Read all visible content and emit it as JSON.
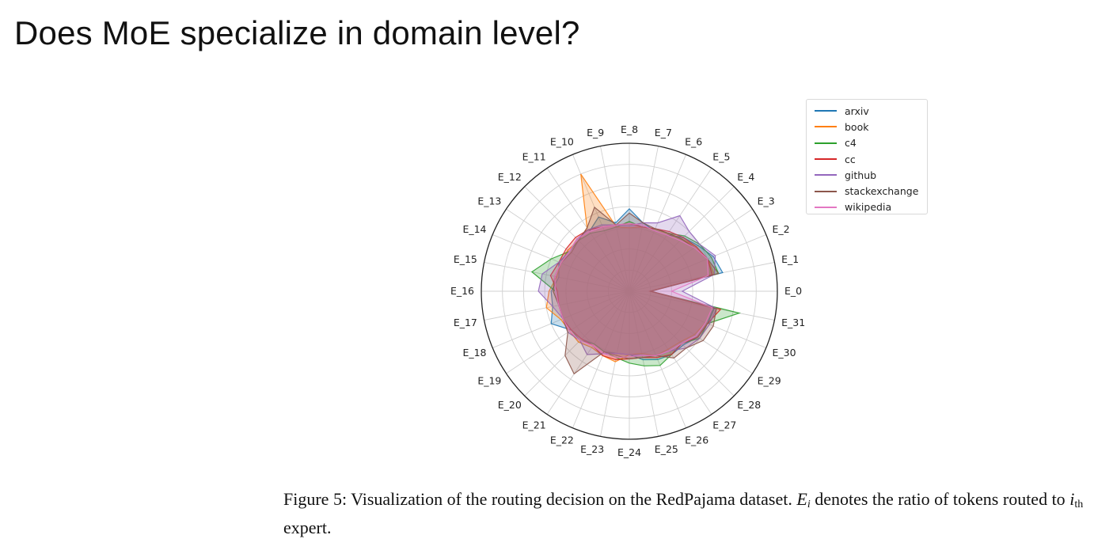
{
  "slide": {
    "title": "Does MoE specialize in domain level?"
  },
  "caption": {
    "prefix": "Figure 5: Visualization of the routing decision on the RedPajama dataset.",
    "var_letter": "E",
    "var_sub": "i",
    "mid": "denotes the ratio of tokens routed to",
    "ith_letter": "i",
    "ith_sub": "th",
    "suffix": "expert."
  },
  "chart_data": {
    "type": "radar",
    "title": "",
    "categories": [
      "E_0",
      "E_1",
      "E_2",
      "E_3",
      "E_4",
      "E_5",
      "E_6",
      "E_7",
      "E_8",
      "E_9",
      "E_10",
      "E_11",
      "E_12",
      "E_13",
      "E_14",
      "E_15",
      "E_16",
      "E_17",
      "E_18",
      "E_19",
      "E_20",
      "E_21",
      "E_22",
      "E_23",
      "E_24",
      "E_25",
      "E_26",
      "E_27",
      "E_28",
      "E_29",
      "E_30",
      "E_31"
    ],
    "rlim": [
      0,
      0.07
    ],
    "grid": true,
    "legend_position": "top-right",
    "series": [
      {
        "name": "arxiv",
        "color": "#1f77b4",
        "values": [
          0.01,
          0.045,
          0.043,
          0.039,
          0.036,
          0.032,
          0.031,
          0.033,
          0.039,
          0.033,
          0.038,
          0.034,
          0.035,
          0.034,
          0.036,
          0.034,
          0.037,
          0.037,
          0.04,
          0.033,
          0.032,
          0.03,
          0.031,
          0.03,
          0.03,
          0.033,
          0.035,
          0.036,
          0.036,
          0.039,
          0.04,
          0.041
        ]
      },
      {
        "name": "book",
        "color": "#ff7f0e",
        "values": [
          0.01,
          0.041,
          0.04,
          0.038,
          0.035,
          0.033,
          0.032,
          0.031,
          0.03,
          0.031,
          0.06,
          0.036,
          0.034,
          0.035,
          0.035,
          0.035,
          0.038,
          0.04,
          0.035,
          0.034,
          0.034,
          0.032,
          0.033,
          0.034,
          0.03,
          0.03,
          0.033,
          0.033,
          0.034,
          0.037,
          0.039,
          0.04
        ]
      },
      {
        "name": "c4",
        "color": "#2ca02c",
        "values": [
          0.01,
          0.043,
          0.042,
          0.04,
          0.037,
          0.033,
          0.032,
          0.031,
          0.033,
          0.031,
          0.031,
          0.033,
          0.034,
          0.034,
          0.04,
          0.047,
          0.035,
          0.034,
          0.034,
          0.033,
          0.033,
          0.03,
          0.031,
          0.032,
          0.034,
          0.036,
          0.038,
          0.036,
          0.035,
          0.04,
          0.04,
          0.053
        ]
      },
      {
        "name": "cc",
        "color": "#d62728",
        "values": [
          0.01,
          0.04,
          0.04,
          0.038,
          0.036,
          0.034,
          0.032,
          0.031,
          0.032,
          0.032,
          0.033,
          0.035,
          0.036,
          0.036,
          0.036,
          0.038,
          0.034,
          0.034,
          0.034,
          0.033,
          0.032,
          0.031,
          0.033,
          0.033,
          0.032,
          0.032,
          0.034,
          0.036,
          0.035,
          0.039,
          0.04,
          0.044
        ]
      },
      {
        "name": "github",
        "color": "#9467bd",
        "values": [
          0.025,
          0.041,
          0.044,
          0.04,
          0.04,
          0.043,
          0.035,
          0.033,
          0.031,
          0.032,
          0.034,
          0.035,
          0.035,
          0.034,
          0.036,
          0.042,
          0.043,
          0.037,
          0.034,
          0.035,
          0.033,
          0.036,
          0.032,
          0.03,
          0.03,
          0.031,
          0.033,
          0.034,
          0.038,
          0.04,
          0.041,
          0.042
        ]
      },
      {
        "name": "stackexchange",
        "color": "#8c564b",
        "values": [
          0.01,
          0.043,
          0.04,
          0.037,
          0.035,
          0.033,
          0.032,
          0.033,
          0.037,
          0.032,
          0.043,
          0.036,
          0.034,
          0.033,
          0.035,
          0.036,
          0.036,
          0.034,
          0.034,
          0.035,
          0.043,
          0.047,
          0.031,
          0.031,
          0.032,
          0.032,
          0.033,
          0.038,
          0.038,
          0.042,
          0.043,
          0.042
        ]
      },
      {
        "name": "wikipedia",
        "color": "#e377c2",
        "values": [
          0.02,
          0.038,
          0.04,
          0.037,
          0.034,
          0.032,
          0.031,
          0.032,
          0.032,
          0.032,
          0.033,
          0.034,
          0.035,
          0.034,
          0.035,
          0.036,
          0.035,
          0.034,
          0.034,
          0.034,
          0.033,
          0.031,
          0.032,
          0.032,
          0.031,
          0.031,
          0.033,
          0.034,
          0.035,
          0.038,
          0.039,
          0.04
        ]
      }
    ]
  }
}
